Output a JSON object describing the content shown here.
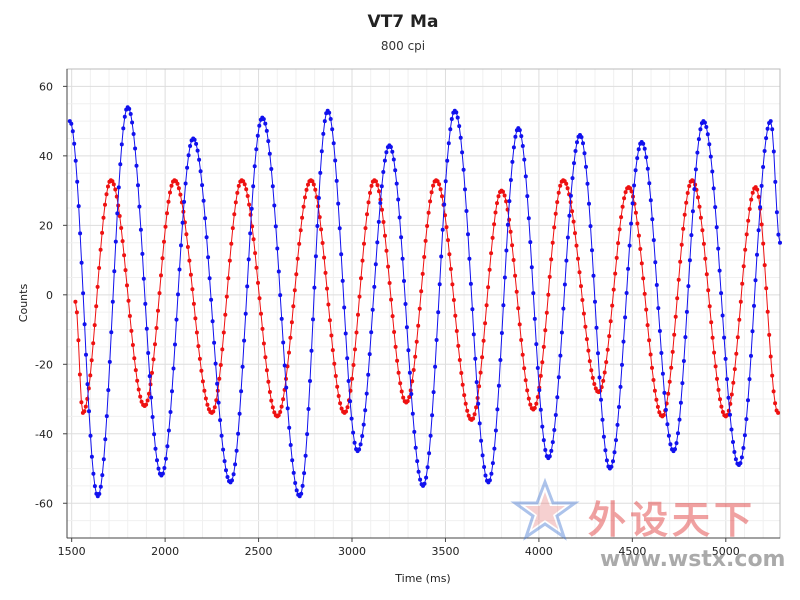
{
  "chart_data": {
    "type": "scatter",
    "title": "VT7 Ma",
    "subtitle": "800 cpi",
    "xlabel": "Time (ms)",
    "ylabel": "Counts",
    "xlim": [
      1475,
      5290
    ],
    "ylim": [
      -70,
      65
    ],
    "xticks": [
      1500,
      2000,
      2500,
      3000,
      3500,
      4000,
      4500,
      5000
    ],
    "yticks": [
      -60,
      -40,
      -20,
      0,
      20,
      40,
      60
    ],
    "grid": true,
    "legend": "none",
    "series": [
      {
        "color": "#ee1111",
        "style": "points with thin line",
        "peaks": [
          {
            "x": 1520,
            "y": -2
          },
          {
            "x": 1560,
            "y": -34
          },
          {
            "x": 1710,
            "y": 33
          },
          {
            "x": 1890,
            "y": -32
          },
          {
            "x": 2050,
            "y": 33
          },
          {
            "x": 2250,
            "y": -34
          },
          {
            "x": 2410,
            "y": 33
          },
          {
            "x": 2600,
            "y": -35
          },
          {
            "x": 2780,
            "y": 33
          },
          {
            "x": 2960,
            "y": -34
          },
          {
            "x": 3120,
            "y": 33
          },
          {
            "x": 3290,
            "y": -31
          },
          {
            "x": 3450,
            "y": 33
          },
          {
            "x": 3640,
            "y": -36
          },
          {
            "x": 3800,
            "y": 30
          },
          {
            "x": 3970,
            "y": -33
          },
          {
            "x": 4130,
            "y": 33
          },
          {
            "x": 4320,
            "y": -28
          },
          {
            "x": 4480,
            "y": 31
          },
          {
            "x": 4660,
            "y": -35
          },
          {
            "x": 4820,
            "y": 33
          },
          {
            "x": 5000,
            "y": -35
          },
          {
            "x": 5160,
            "y": 31
          },
          {
            "x": 5280,
            "y": -34
          }
        ]
      },
      {
        "color": "#1111ee",
        "style": "points with thin line",
        "peaks": [
          {
            "x": 1490,
            "y": 50
          },
          {
            "x": 1640,
            "y": -58
          },
          {
            "x": 1800,
            "y": 54
          },
          {
            "x": 1980,
            "y": -52
          },
          {
            "x": 2150,
            "y": 45
          },
          {
            "x": 2350,
            "y": -54
          },
          {
            "x": 2520,
            "y": 51
          },
          {
            "x": 2720,
            "y": -58
          },
          {
            "x": 2870,
            "y": 53
          },
          {
            "x": 3030,
            "y": -45
          },
          {
            "x": 3200,
            "y": 43
          },
          {
            "x": 3380,
            "y": -55
          },
          {
            "x": 3550,
            "y": 53
          },
          {
            "x": 3730,
            "y": -54
          },
          {
            "x": 3890,
            "y": 48
          },
          {
            "x": 4050,
            "y": -47
          },
          {
            "x": 4220,
            "y": 46
          },
          {
            "x": 4380,
            "y": -50
          },
          {
            "x": 4550,
            "y": 44
          },
          {
            "x": 4720,
            "y": -45
          },
          {
            "x": 4880,
            "y": 50
          },
          {
            "x": 5070,
            "y": -49
          },
          {
            "x": 5240,
            "y": 50
          },
          {
            "x": 5290,
            "y": 15
          }
        ]
      }
    ]
  },
  "watermark": {
    "text": "外设天下",
    "url": "www.wstx.com"
  }
}
